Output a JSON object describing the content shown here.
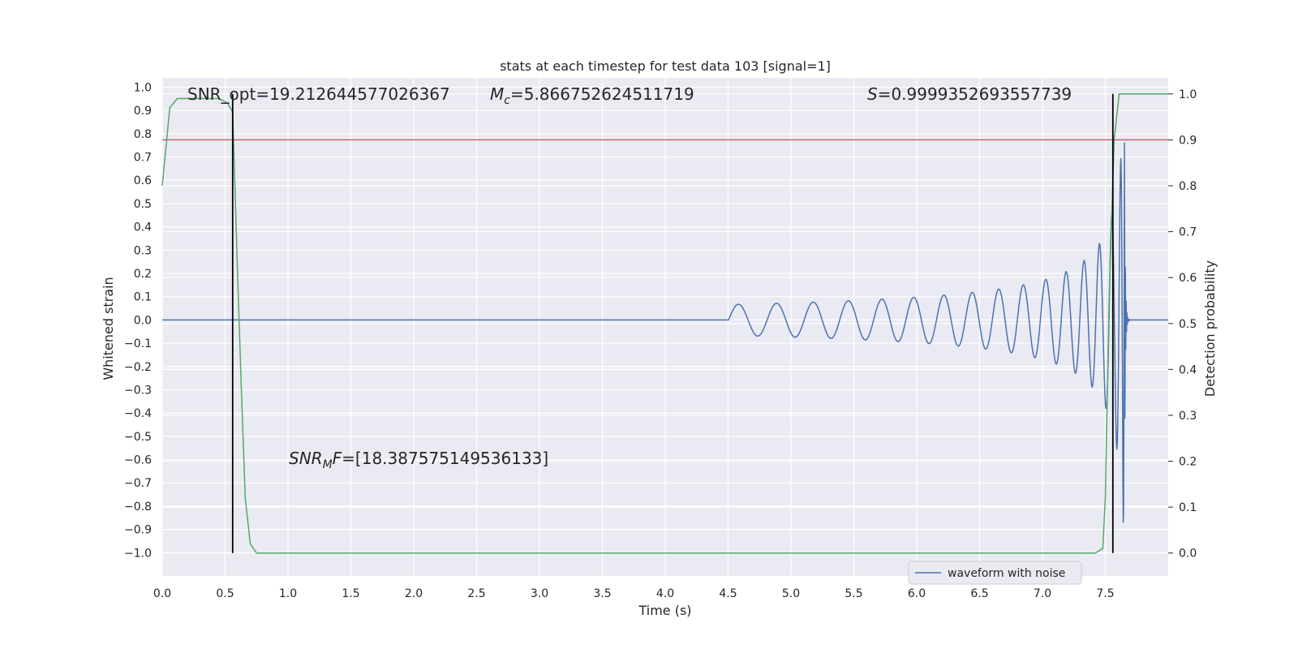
{
  "chart_data": {
    "type": "line",
    "title": "stats at each timestep for test data 103 [signal=1]",
    "xlabel": "Time (s)",
    "ylabel_left": "Whitened strain",
    "ylabel_right": "Detection probability",
    "xlim": [
      0.0,
      8.0
    ],
    "ylim_left": [
      -1.1,
      1.04
    ],
    "ylim_right": [
      -0.05,
      1.035
    ],
    "x_ticks": [
      "0.0",
      "0.5",
      "1.0",
      "1.5",
      "2.0",
      "2.5",
      "3.0",
      "3.5",
      "4.0",
      "4.5",
      "5.0",
      "5.5",
      "6.0",
      "6.5",
      "7.0",
      "7.5"
    ],
    "y_left_ticks": [
      "1.0",
      "0.9",
      "0.8",
      "0.7",
      "0.6",
      "0.5",
      "0.4",
      "0.3",
      "0.2",
      "0.1",
      "0.0",
      "−0.1",
      "−0.2",
      "−0.3",
      "−0.4",
      "−0.5",
      "−0.6",
      "−0.7",
      "−0.8",
      "−0.9",
      "−1.0"
    ],
    "y_right_ticks": [
      "1.0",
      "0.9",
      "0.8",
      "0.7",
      "0.6",
      "0.5",
      "0.4",
      "0.3",
      "0.2",
      "0.1",
      "0.0"
    ],
    "grid": true,
    "legend_position": "lower-right",
    "series": [
      {
        "name": "waveform with noise",
        "axis": "left",
        "color": "#4c72b0",
        "kind": "chirp",
        "start_time": 4.5,
        "merger_time": 7.65,
        "peak_amplitude": 1.0
      },
      {
        "axis": "right",
        "color": "#55a868",
        "x": [
          0.0,
          0.06,
          0.12,
          0.2,
          0.3,
          0.4,
          0.45,
          0.52,
          0.56,
          0.6,
          0.63,
          0.66,
          0.7,
          0.75,
          0.8,
          1.0,
          2.0,
          3.0,
          4.0,
          5.0,
          6.0,
          7.0,
          7.3,
          7.42,
          7.48,
          7.5,
          7.53,
          7.57,
          7.61,
          7.65,
          7.7,
          8.0
        ],
        "y": [
          0.8,
          0.97,
          0.99,
          0.99,
          0.99,
          0.99,
          0.99,
          0.98,
          0.96,
          0.6,
          0.35,
          0.12,
          0.02,
          0.0,
          0.0,
          0.0,
          0.0,
          0.0,
          0.0,
          0.0,
          0.0,
          0.0,
          0.0,
          0.0,
          0.01,
          0.12,
          0.55,
          0.9,
          1.0,
          1.0,
          1.0,
          1.0
        ]
      }
    ],
    "hlines": [
      {
        "axis": "right",
        "y": 0.9,
        "color": "#c44e52"
      }
    ],
    "vlines": [
      {
        "x": 0.56,
        "y_right": [
          0.0,
          1.0
        ],
        "color": "#000000"
      },
      {
        "x": 7.56,
        "y_right": [
          0.0,
          1.0
        ],
        "color": "#000000"
      }
    ],
    "annotations": {
      "snr_opt": "SNR_opt=19.212644577026367",
      "mc_symbol": "M",
      "mc_sub": "c",
      "mc_value": "=5.866752624511719",
      "s_symbol": "S",
      "s_value": "=0.9999352693557739",
      "snrmf_symbol": "SNR",
      "snrmf_sub": "M",
      "snrmf_f": "F",
      "snrmf_value": "=[18.387575149536133]"
    }
  }
}
